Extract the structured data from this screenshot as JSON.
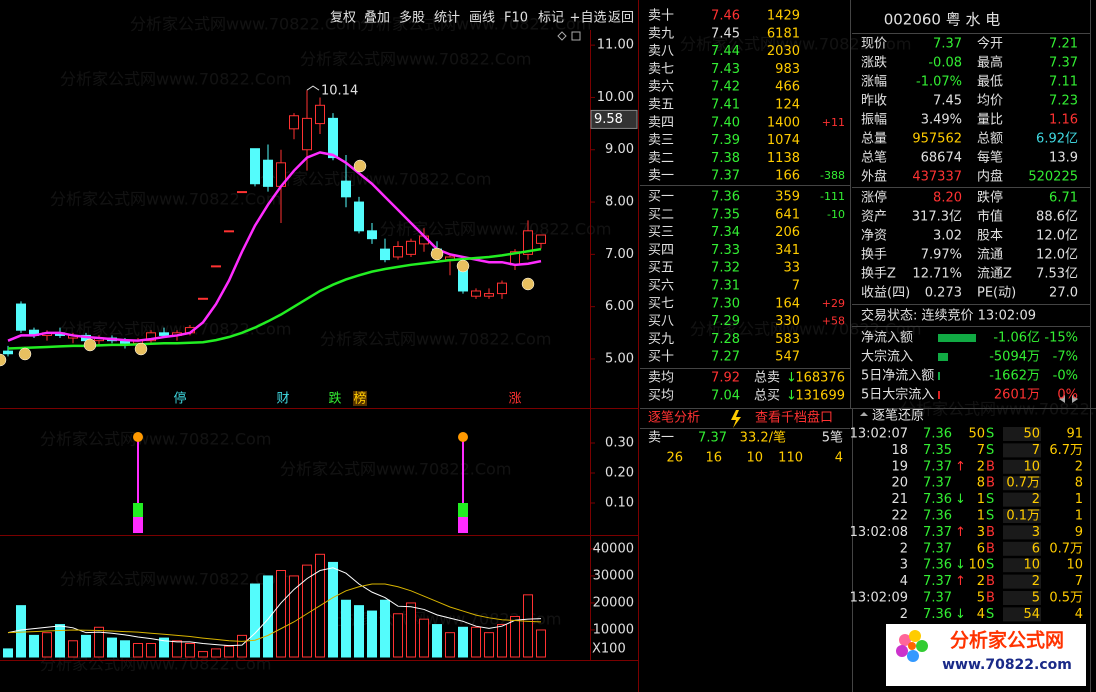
{
  "watermark": "分析家公式网www.70822.Com",
  "toolbar": [
    "复权",
    "叠加",
    "多股",
    "统计",
    "画线",
    "F10",
    "标记",
    "+自选",
    "返回"
  ],
  "chart_data": [
    {
      "type": "candlestick",
      "up_color": "#ff3232",
      "down_color": "#54fcfc",
      "open": [
        5.15,
        6.05,
        5.55,
        5.45,
        5.5,
        5.4,
        5.45,
        5.35,
        5.4,
        5.35,
        5.3,
        5.35,
        5.5,
        5.45,
        5.5,
        6.16,
        6.78,
        7.45,
        8.2,
        9.02,
        8.8,
        8.3,
        9.4,
        9.0,
        9.5,
        9.6,
        8.4,
        8.0,
        7.45,
        7.1,
        6.95,
        7.0,
        7.2,
        7.1,
        6.9,
        6.8,
        6.2,
        6.2,
        6.25,
        6.8,
        7.0,
        7.21
      ],
      "high": [
        5.25,
        6.1,
        5.6,
        5.55,
        5.6,
        5.5,
        5.5,
        5.45,
        5.45,
        5.4,
        5.4,
        5.55,
        5.6,
        5.55,
        5.65,
        6.16,
        6.78,
        7.45,
        8.2,
        9.02,
        9.1,
        9.0,
        9.7,
        10.14,
        10.0,
        9.7,
        8.9,
        8.1,
        7.6,
        7.3,
        7.25,
        7.3,
        7.5,
        7.25,
        7.0,
        6.85,
        6.35,
        6.35,
        6.5,
        7.1,
        7.65,
        7.37
      ],
      "low": [
        5.05,
        5.5,
        5.4,
        5.35,
        5.4,
        5.3,
        5.3,
        5.25,
        5.3,
        5.2,
        5.25,
        5.3,
        5.4,
        5.35,
        5.45,
        6.16,
        6.78,
        7.45,
        8.2,
        8.3,
        8.2,
        7.6,
        9.2,
        8.6,
        9.3,
        8.8,
        7.9,
        7.4,
        7.2,
        6.85,
        6.9,
        6.95,
        7.05,
        6.9,
        6.6,
        6.25,
        6.15,
        6.15,
        6.15,
        6.7,
        6.9,
        7.11
      ],
      "close": [
        5.1,
        5.55,
        5.45,
        5.5,
        5.45,
        5.45,
        5.35,
        5.4,
        5.35,
        5.3,
        5.35,
        5.5,
        5.45,
        5.5,
        5.6,
        6.16,
        6.78,
        7.45,
        8.2,
        8.35,
        8.3,
        8.75,
        9.65,
        9.6,
        9.85,
        8.85,
        8.1,
        7.45,
        7.3,
        6.9,
        7.15,
        7.25,
        7.35,
        6.95,
        6.95,
        6.3,
        6.3,
        6.25,
        6.45,
        7.05,
        7.45,
        7.37
      ],
      "lines": [
        {
          "color": "#ff2cff",
          "values": [
            5.35,
            5.45,
            5.45,
            5.5,
            5.5,
            5.45,
            5.42,
            5.4,
            5.38,
            5.36,
            5.35,
            5.38,
            5.42,
            5.45,
            5.5,
            5.7,
            6.05,
            6.5,
            7.05,
            7.55,
            7.95,
            8.3,
            8.6,
            8.85,
            8.95,
            8.9,
            8.75,
            8.55,
            8.35,
            8.1,
            7.85,
            7.6,
            7.35,
            7.1,
            7.0,
            6.95,
            6.9,
            6.85,
            6.85,
            6.8,
            6.82,
            6.87
          ]
        },
        {
          "color": "#22ee22",
          "values": [
            5.2,
            5.21,
            5.22,
            5.23,
            5.24,
            5.25,
            5.25,
            5.26,
            5.27,
            5.27,
            5.28,
            5.29,
            5.3,
            5.3,
            5.31,
            5.32,
            5.36,
            5.42,
            5.5,
            5.6,
            5.72,
            5.85,
            6.0,
            6.15,
            6.3,
            6.42,
            6.52,
            6.6,
            6.67,
            6.72,
            6.76,
            6.8,
            6.83,
            6.86,
            6.89,
            6.91,
            6.93,
            6.95,
            6.98,
            7.02,
            7.06,
            7.1
          ]
        }
      ],
      "ylim": [
        4.12,
        11.71
      ],
      "yticks": [
        {
          "value": 11,
          "label": "11.00"
        },
        {
          "value": 10,
          "label": "10.00"
        },
        {
          "value": 9,
          "label": "9.00"
        },
        {
          "value": 8,
          "label": "8.00"
        },
        {
          "value": 7,
          "label": "7.00"
        },
        {
          "value": 6,
          "label": "6.00"
        },
        {
          "value": 5,
          "label": "5.00"
        }
      ],
      "high_label": {
        "value": 10.14,
        "label": "10.14"
      },
      "cursor_label": {
        "value": 9.58,
        "label": "9.58"
      },
      "signals": [
        {
          "text": "停",
          "color": "#40d8e0"
        },
        {
          "text": "财",
          "color": "#40d8e0"
        },
        {
          "text": "跌",
          "color": "#33ee33"
        },
        {
          "text": "榜",
          "color": "#ffcc00"
        },
        {
          "text": "涨",
          "color": "#ff3232"
        }
      ]
    },
    {
      "type": "bar",
      "color": "#ff2cff",
      "values": [
        0,
        0,
        0,
        0,
        0,
        0,
        0,
        0,
        0,
        0,
        0.32,
        0,
        0,
        0,
        0,
        0,
        0,
        0,
        0,
        0,
        0,
        0,
        0,
        0,
        0,
        0,
        0,
        0,
        0,
        0,
        0,
        0,
        0,
        0,
        0,
        0.32,
        0,
        0,
        0,
        0,
        0,
        0
      ],
      "ylim": [
        0,
        0.41
      ],
      "yticks": [
        {
          "value": 0.3,
          "label": "0.30"
        },
        {
          "value": 0.2,
          "label": "0.20"
        },
        {
          "value": 0.1,
          "label": "0.10"
        }
      ]
    },
    {
      "type": "bar",
      "values": [
        3000,
        19000,
        8000,
        9000,
        12000,
        6000,
        8000,
        11000,
        7000,
        6000,
        5000,
        5000,
        7000,
        6000,
        5000,
        2000,
        3000,
        4000,
        8000,
        27000,
        30000,
        32000,
        30000,
        34000,
        38000,
        35000,
        21000,
        19000,
        17000,
        21000,
        16000,
        20000,
        14000,
        12000,
        9000,
        11000,
        11000,
        9000,
        12000,
        15000,
        23000,
        10000
      ],
      "lines": [
        {
          "color": "#ffffff",
          "values": [
            9000,
            10000,
            10500,
            11000,
            11500,
            10800,
            9000,
            9200,
            8800,
            8200,
            7400,
            6800,
            6000,
            5600,
            5600,
            5000,
            4600,
            4200,
            4400,
            8800,
            14000,
            20000,
            25000,
            29000,
            32000,
            33000,
            31000,
            27000,
            24000,
            22000,
            18800,
            18600,
            17600,
            15600,
            14400,
            13200,
            11400,
            10600,
            11400,
            13600,
            14000,
            14200
          ]
        },
        {
          "color": "#d8b400",
          "values": [
            9000,
            9200,
            9400,
            9600,
            9800,
            10000,
            9900,
            9800,
            9600,
            9400,
            9200,
            8800,
            8400,
            8000,
            7600,
            7000,
            6500,
            6000,
            5800,
            6200,
            8000,
            10500,
            13000,
            16000,
            19000,
            22000,
            24500,
            26000,
            27000,
            27000,
            26000,
            24500,
            22500,
            20500,
            18500,
            17000,
            15500,
            14500,
            13800,
            13500,
            13200,
            13000
          ]
        }
      ],
      "ylim": [
        0,
        44400
      ],
      "yticks": [
        40000,
        30000,
        20000,
        10000
      ],
      "unit_label": "X100"
    }
  ],
  "order_book": {
    "asks": [
      [
        "卖十",
        "7.46",
        "1429"
      ],
      [
        "卖九",
        "7.45",
        "6181"
      ],
      [
        "卖八",
        "7.44",
        "2030"
      ],
      [
        "卖七",
        "7.43",
        "983"
      ],
      [
        "卖六",
        "7.42",
        "466"
      ],
      [
        "卖五",
        "7.41",
        "124"
      ],
      [
        "卖四",
        "7.40",
        "1400",
        "+11"
      ],
      [
        "卖三",
        "7.39",
        "1074"
      ],
      [
        "卖二",
        "7.38",
        "1138"
      ],
      [
        "卖一",
        "7.37",
        "166",
        "-388"
      ]
    ],
    "bids": [
      [
        "买一",
        "7.36",
        "359",
        "-111"
      ],
      [
        "买二",
        "7.35",
        "641",
        "-10"
      ],
      [
        "买三",
        "7.34",
        "206"
      ],
      [
        "买四",
        "7.33",
        "341"
      ],
      [
        "买五",
        "7.32",
        "33"
      ],
      [
        "买六",
        "7.31",
        "7"
      ],
      [
        "买七",
        "7.30",
        "164",
        "+29"
      ],
      [
        "买八",
        "7.29",
        "330",
        "+58"
      ],
      [
        "买九",
        "7.28",
        "583"
      ],
      [
        "买十",
        "7.27",
        "547"
      ]
    ],
    "averages": [
      [
        "卖均",
        "7.92",
        "总卖",
        "↓",
        "168376"
      ],
      [
        "买均",
        "7.04",
        "总买",
        "↓",
        "131699"
      ]
    ]
  },
  "tick_analysis": {
    "tabs": [
      "逐笔分析",
      "查看千档盘口"
    ],
    "row1": [
      "卖一",
      "7.37",
      "33.2/笔",
      "5笔"
    ],
    "row2": [
      "26",
      "16",
      "10",
      "110",
      "4"
    ]
  },
  "quote": {
    "title": "002060 粤 水 电",
    "rows": [
      [
        {
          "label": "现价",
          "value": "7.37",
          "color": "#33ee33"
        },
        {
          "label": "今开",
          "value": "7.21",
          "color": "#33ee33"
        }
      ],
      [
        {
          "label": "涨跌",
          "value": "-0.08",
          "color": "#33ee33"
        },
        {
          "label": "最高",
          "value": "7.37",
          "color": "#33ee33"
        }
      ],
      [
        {
          "label": "涨幅",
          "value": "-1.07%",
          "color": "#33ee33"
        },
        {
          "label": "最低",
          "value": "7.11",
          "color": "#33ee33"
        }
      ],
      [
        {
          "label": "昨收",
          "value": "7.45",
          "color": "#e0e0e0"
        },
        {
          "label": "均价",
          "value": "7.23",
          "color": "#33ee33"
        }
      ],
      [
        {
          "label": "振幅",
          "value": "3.49%",
          "color": "#e0e0e0"
        },
        {
          "label": "量比",
          "value": "1.16",
          "color": "#ff3232"
        }
      ],
      [
        {
          "label": "总量",
          "value": "957562",
          "color": "#ffcc00"
        },
        {
          "label": "总额",
          "value": "6.92亿",
          "color": "#40d8e0"
        }
      ],
      [
        {
          "label": "总笔",
          "value": "68674",
          "color": "#e0e0e0"
        },
        {
          "label": "每笔",
          "value": "13.9",
          "color": "#e0e0e0"
        }
      ],
      [
        {
          "label": "外盘",
          "value": "437337",
          "color": "#ff3232"
        },
        {
          "label": "内盘",
          "value": "520225",
          "color": "#33ee33"
        }
      ],
      [
        {
          "label": "涨停",
          "value": "8.20",
          "color": "#ff3232"
        },
        {
          "label": "跌停",
          "value": "6.71",
          "color": "#33ee33"
        }
      ],
      [
        {
          "label": "资产",
          "value": "317.3亿",
          "color": "#e0e0e0"
        },
        {
          "label": "市值",
          "value": "88.6亿",
          "color": "#e0e0e0"
        }
      ],
      [
        {
          "label": "净资",
          "value": "3.02",
          "color": "#e0e0e0"
        },
        {
          "label": "股本",
          "value": "12.0亿",
          "color": "#e0e0e0"
        }
      ],
      [
        {
          "label": "换手",
          "value": "7.97%",
          "color": "#e0e0e0"
        },
        {
          "label": "流通",
          "value": "12.0亿",
          "color": "#e0e0e0"
        }
      ],
      [
        {
          "label": "换手Z",
          "value": "12.71%",
          "color": "#e0e0e0"
        },
        {
          "label": "流通Z",
          "value": "7.53亿",
          "color": "#e0e0e0"
        }
      ],
      [
        {
          "label": "收益(四)",
          "value": "0.273",
          "color": "#e0e0e0"
        },
        {
          "label": "PE(动)",
          "value": "27.0",
          "color": "#e0e0e0"
        }
      ]
    ],
    "status": "交易状态: 连续竞价 13:02:09"
  },
  "fund_flow": [
    {
      "label": "净流入额",
      "value": "-1.06亿",
      "pct": "-15%"
    },
    {
      "label": "大宗流入",
      "value": "-5094万",
      "pct": "-7%"
    },
    {
      "label": "5日净流入额",
      "value": "-1662万",
      "pct": "-0%"
    },
    {
      "label": "5日大宗流入",
      "value": "2601万",
      "pct": "0%"
    }
  ],
  "ticks": {
    "title": "逐笔还原",
    "rows": [
      [
        "13:02:07",
        "7.36",
        "",
        "50",
        "S",
        "50",
        "91"
      ],
      [
        "18",
        "7.35",
        "",
        "7",
        "S",
        "7",
        "6.7万"
      ],
      [
        "19",
        "7.37",
        "↑",
        "2",
        "B",
        "10",
        "2"
      ],
      [
        "20",
        "7.37",
        "",
        "8",
        "B",
        "0.7万",
        "8"
      ],
      [
        "21",
        "7.36",
        "↓",
        "1",
        "S",
        "2",
        "1"
      ],
      [
        "22",
        "7.36",
        "",
        "1",
        "S",
        "0.1万",
        "1"
      ],
      [
        "13:02:08",
        "7.37",
        "↑",
        "3",
        "B",
        "3",
        "9"
      ],
      [
        "2",
        "7.37",
        "",
        "6",
        "B",
        "6",
        "0.7万"
      ],
      [
        "3",
        "7.36",
        "↓",
        "10",
        "S",
        "10",
        "10"
      ],
      [
        "4",
        "7.37",
        "↑",
        "2",
        "B",
        "2",
        "7"
      ],
      [
        "13:02:09",
        "7.37",
        "",
        "5",
        "B",
        "5",
        "0.5万"
      ],
      [
        "2",
        "7.36",
        "↓",
        "4",
        "S",
        "54",
        "4"
      ]
    ]
  },
  "logo": {
    "title": "分析家公式网",
    "url": "www.70822.com"
  }
}
